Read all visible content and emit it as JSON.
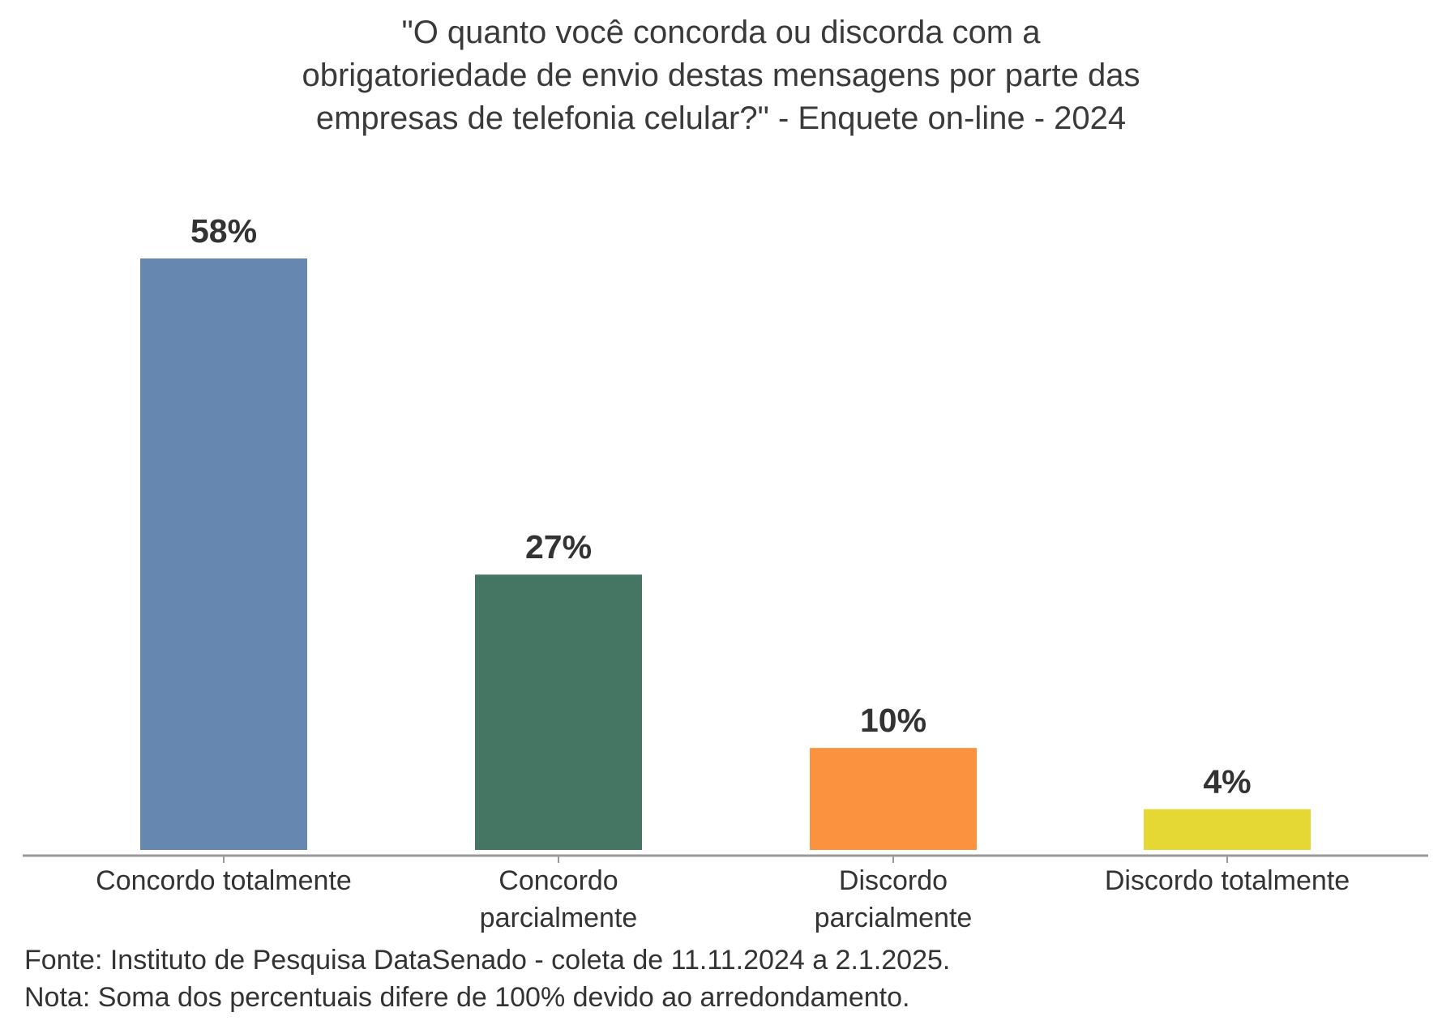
{
  "chart_data": {
    "type": "bar",
    "title_lines": [
      "\"O quanto você concorda ou discorda com a",
      "obrigatoriedade de envio destas mensagens por parte das",
      "empresas de telefonia celular?\" - Enquete on-line - 2024"
    ],
    "categories": [
      [
        "Concordo totalmente"
      ],
      [
        "Concordo",
        "parcialmente"
      ],
      [
        "Discordo",
        "parcialmente"
      ],
      [
        "Discordo totalmente"
      ]
    ],
    "values": [
      58,
      27,
      10,
      4
    ],
    "value_labels": [
      "58%",
      "27%",
      "10%",
      "4%"
    ],
    "colors": [
      "#6688b0",
      "#457563",
      "#fa923f",
      "#e5d835"
    ],
    "xlabel": "",
    "ylabel": "",
    "ylim": [
      0,
      58
    ],
    "grid": false,
    "legend": "none"
  },
  "footer": {
    "source": "Fonte: Instituto de Pesquisa DataSenado - coleta de 11.11.2024 a 2.1.2025.",
    "note": "Nota: Soma dos percentuais difere de 100% devido ao arredondamento."
  }
}
